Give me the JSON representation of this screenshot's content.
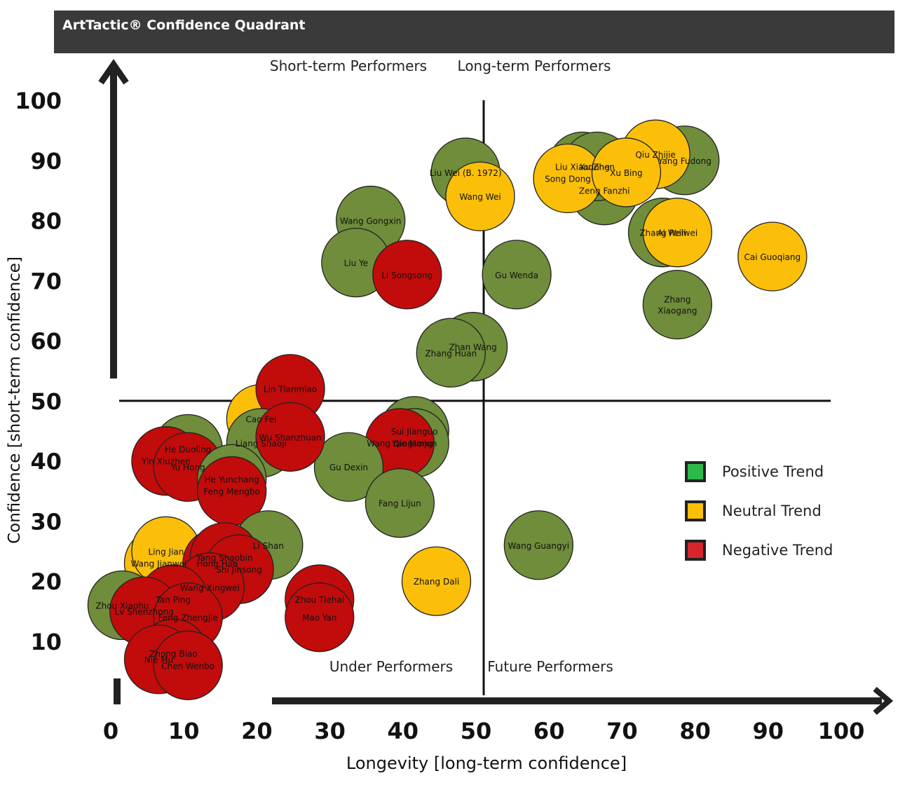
{
  "chart_data": {
    "type": "scatter",
    "title": "ArtTactic® Confidence Quadrant",
    "xlabel": "Longevity [long-term confidence]",
    "ylabel": "Confidence [short-term confidence]",
    "xlim": [
      0,
      100
    ],
    "ylim": [
      0,
      100
    ],
    "x_ticks": [
      "0",
      "10",
      "20",
      "30",
      "40",
      "50",
      "60",
      "70",
      "80",
      "90",
      "100"
    ],
    "y_ticks": [
      "10",
      "20",
      "30",
      "40",
      "50",
      "60",
      "70",
      "80",
      "90",
      "100"
    ],
    "divider_x": 50,
    "divider_y": 50,
    "quadrant_labels": [
      {
        "text": "Short-term Performers",
        "position": "top-left"
      },
      {
        "text": "Long-term Performers",
        "position": "top-right"
      },
      {
        "text": "Under Performers",
        "position": "bottom-left"
      },
      {
        "text": "Future Performers",
        "position": "bottom-right"
      }
    ],
    "legend": [
      {
        "label": "Positive Trend",
        "color": "#2db84b"
      },
      {
        "label": "Neutral Trend",
        "color": "#fbbf0a"
      },
      {
        "label": "Negative Trend",
        "color": "#d7262b"
      }
    ],
    "legend_position": "right",
    "colors": {
      "positive": "#6f8d3b",
      "neutral": "#fbbf0a",
      "negative": "#c20b0b"
    },
    "points": [
      {
        "name": "Zeng Fanzhi",
        "x": 67,
        "y": 85,
        "trend": "positive"
      },
      {
        "name": "Liu Xiaodong",
        "x": 64,
        "y": 89,
        "trend": "positive"
      },
      {
        "name": "Xu Zhen",
        "x": 66,
        "y": 89,
        "trend": "positive"
      },
      {
        "name": "Yang Fudong",
        "x": 78,
        "y": 90,
        "trend": "positive"
      },
      {
        "name": "Qiu Zhijie",
        "x": 74,
        "y": 91,
        "trend": "neutral"
      },
      {
        "name": "Song Dong",
        "x": 62,
        "y": 87,
        "trend": "neutral"
      },
      {
        "name": "Xu Bing",
        "x": 70,
        "y": 88,
        "trend": "neutral"
      },
      {
        "name": "Zhang Peili",
        "x": 75,
        "y": 78,
        "trend": "positive"
      },
      {
        "name": "Ai Weiwei",
        "x": 77,
        "y": 78,
        "trend": "neutral"
      },
      {
        "name": "Cai Guoqiang",
        "x": 90,
        "y": 74,
        "trend": "neutral"
      },
      {
        "name": "Zhang Xiaogang",
        "x": 77,
        "y": 66,
        "trend": "positive"
      },
      {
        "name": "Liu Wei (B. 1972)",
        "x": 48,
        "y": 88,
        "trend": "positive"
      },
      {
        "name": "Wang Wei",
        "x": 50,
        "y": 84,
        "trend": "neutral"
      },
      {
        "name": "Wang Gongxin",
        "x": 35,
        "y": 80,
        "trend": "positive"
      },
      {
        "name": "Liu Ye",
        "x": 33,
        "y": 73,
        "trend": "positive"
      },
      {
        "name": "Li Songsong",
        "x": 40,
        "y": 71,
        "trend": "negative"
      },
      {
        "name": "Gu Wenda",
        "x": 55,
        "y": 71,
        "trend": "positive"
      },
      {
        "name": "Zhan Wang",
        "x": 49,
        "y": 59,
        "trend": "positive"
      },
      {
        "name": "Zhang Huan",
        "x": 46,
        "y": 58,
        "trend": "positive"
      },
      {
        "name": "Sui Jianguo",
        "x": 41,
        "y": 45,
        "trend": "positive"
      },
      {
        "name": "Yue Minjun",
        "x": 41,
        "y": 43,
        "trend": "positive"
      },
      {
        "name": "Wang Qingsong",
        "x": 39,
        "y": 43,
        "trend": "negative"
      },
      {
        "name": "Gu Dexin",
        "x": 32,
        "y": 39,
        "trend": "positive"
      },
      {
        "name": "Fang Lijun",
        "x": 39,
        "y": 33,
        "trend": "positive"
      },
      {
        "name": "Zhang Dali",
        "x": 44,
        "y": 20,
        "trend": "neutral"
      },
      {
        "name": "Wang Guangyi",
        "x": 58,
        "y": 26,
        "trend": "positive"
      },
      {
        "name": "Cao Fei",
        "x": 20,
        "y": 47,
        "trend": "neutral"
      },
      {
        "name": "Lin Tianmiao",
        "x": 24,
        "y": 52,
        "trend": "negative"
      },
      {
        "name": "Liang Shaoji",
        "x": 20,
        "y": 43,
        "trend": "positive"
      },
      {
        "name": "Wu Shanzhuan",
        "x": 24,
        "y": 44,
        "trend": "negative"
      },
      {
        "name": "He Duoling",
        "x": 10,
        "y": 42,
        "trend": "positive"
      },
      {
        "name": "Yin Xiuzhen",
        "x": 7,
        "y": 40,
        "trend": "negative"
      },
      {
        "name": "Yu Hong",
        "x": 10,
        "y": 39,
        "trend": "negative"
      },
      {
        "name": "He Yunchang",
        "x": 16,
        "y": 37,
        "trend": "positive"
      },
      {
        "name": "Feng Mengbo",
        "x": 16,
        "y": 35,
        "trend": "negative"
      },
      {
        "name": "Wang Jianwei",
        "x": 6,
        "y": 23,
        "trend": "neutral"
      },
      {
        "name": "Ling Jian",
        "x": 7,
        "y": 25,
        "trend": "neutral"
      },
      {
        "name": "Li Shan",
        "x": 21,
        "y": 26,
        "trend": "positive"
      },
      {
        "name": "Hong Hao",
        "x": 14,
        "y": 23,
        "trend": "negative"
      },
      {
        "name": "Yang Shaobin",
        "x": 15,
        "y": 24,
        "trend": "negative"
      },
      {
        "name": "Shi Jinsong",
        "x": 17,
        "y": 22,
        "trend": "negative"
      },
      {
        "name": "Wang Xingwei",
        "x": 13,
        "y": 19,
        "trend": "negative"
      },
      {
        "name": "Zhou Xiaohu",
        "x": 1,
        "y": 16,
        "trend": "positive"
      },
      {
        "name": "Tan Ping",
        "x": 8,
        "y": 17,
        "trend": "negative"
      },
      {
        "name": "Lv Shenzhong",
        "x": 4,
        "y": 15,
        "trend": "negative"
      },
      {
        "name": "Zhou Tiehai",
        "x": 28,
        "y": 17,
        "trend": "negative"
      },
      {
        "name": "Mao Yan",
        "x": 28,
        "y": 14,
        "trend": "negative"
      },
      {
        "name": "Feng Zhengjie",
        "x": 10,
        "y": 14,
        "trend": "negative"
      },
      {
        "name": "Zhong Biao",
        "x": 8,
        "y": 8,
        "trend": "negative"
      },
      {
        "name": "Nie Mu",
        "x": 6,
        "y": 7,
        "trend": "negative"
      },
      {
        "name": "Chen Wenbo",
        "x": 10,
        "y": 6,
        "trend": "negative"
      }
    ]
  }
}
